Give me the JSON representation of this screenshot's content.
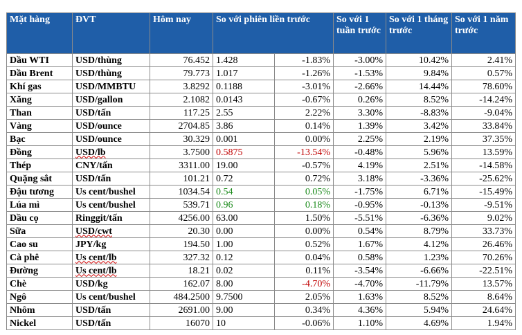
{
  "headers": {
    "commodity": "Mặt hàng",
    "unit": "ĐVT",
    "today": "Hôm nay",
    "vs_prev_session": "So với phiên liền trước",
    "vs_week": "So với 1 tuần trước",
    "vs_month": "So với 1 tháng trước",
    "vs_year": "So với 1 năm trước"
  },
  "rows": [
    {
      "name": "Dầu WTI",
      "unit": "USD/thùng",
      "today": "76.452",
      "chg": "1.428",
      "chg_pct": "-1.83%",
      "week": "-3.00%",
      "month": "10.42%",
      "year": "2.41%"
    },
    {
      "name": "Dầu Brent",
      "unit": "USD/thùng",
      "today": "79.773",
      "chg": "1.017",
      "chg_pct": "-1.26%",
      "week": "-1.53%",
      "month": "9.84%",
      "year": "0.57%"
    },
    {
      "name": "Khí gas",
      "unit": "USD/MMBTU",
      "today": "3.8292",
      "chg": "0.1188",
      "chg_pct": "-3.01%",
      "week": "-2.66%",
      "month": "14.44%",
      "year": "78.60%"
    },
    {
      "name": "Xăng",
      "unit": "USD/gallon",
      "today": "2.1082",
      "chg": "0.0143",
      "chg_pct": "-0.67%",
      "week": "0.26%",
      "month": "8.52%",
      "year": "-14.24%"
    },
    {
      "name": "Than",
      "unit": "USD/tấn",
      "today": "117.25",
      "chg": "2.55",
      "chg_pct": "2.22%",
      "week": "3.30%",
      "month": "-8.83%",
      "year": "-9.04%"
    },
    {
      "name": "Vàng",
      "unit": "USD/ounce",
      "today": "2704.85",
      "chg": "3.86",
      "chg_pct": "0.14%",
      "week": "1.39%",
      "month": "3.42%",
      "year": "33.84%"
    },
    {
      "name": "Bạc",
      "unit": "USD/ounce",
      "today": "30.329",
      "chg": "0.001",
      "chg_pct": "0.00%",
      "week": "2.25%",
      "month": "2.19%",
      "year": "37.35%"
    },
    {
      "name": "Đồng",
      "unit": "USD/lb",
      "today": "3.7500",
      "chg": "0.5875",
      "chg_pct": "-13.54%",
      "week": "-0.48%",
      "month": "5.96%",
      "year": "13.59%"
    },
    {
      "name": "Thép",
      "unit": "CNY/tấn",
      "today": "3311.00",
      "chg": "19.00",
      "chg_pct": "-0.57%",
      "week": "4.19%",
      "month": "2.51%",
      "year": "-14.58%"
    },
    {
      "name": "Quặng sắt",
      "unit": "USD/tấn",
      "today": "101.21",
      "chg": "0.72",
      "chg_pct": "0.72%",
      "week": "3.18%",
      "month": "-3.36%",
      "year": "-25.62%"
    },
    {
      "name": "Đậu tương",
      "unit": "Us cent/bushel",
      "today": "1034.54",
      "chg": "0.54",
      "chg_pct": "0.05%",
      "week": "-1.75%",
      "month": "6.71%",
      "year": "-15.49%"
    },
    {
      "name": "Lúa mì",
      "unit": "Us cent/bushel",
      "today": "539.71",
      "chg": "0.96",
      "chg_pct": "0.18%",
      "week": "-0.95%",
      "month": "-0.13%",
      "year": "-9.51%"
    },
    {
      "name": "Dầu cọ",
      "unit": "Ringgit/tấn",
      "today": "4256.00",
      "chg": "63.00",
      "chg_pct": "1.50%",
      "week": "-5.51%",
      "month": "-6.36%",
      "year": "9.02%"
    },
    {
      "name": "Sữa",
      "unit": "USD/cwt",
      "today": "20.30",
      "chg": "0.00",
      "chg_pct": "0.00%",
      "week": "0.54%",
      "month": "8.79%",
      "year": "33.73%"
    },
    {
      "name": "Cao su",
      "unit": "JPY/kg",
      "today": "194.50",
      "chg": "1.00",
      "chg_pct": "0.52%",
      "week": "1.67%",
      "month": "4.12%",
      "year": "26.46%"
    },
    {
      "name": "Cà phê",
      "unit": "Us cent/lb",
      "today": "327.32",
      "chg": "0.12",
      "chg_pct": "0.04%",
      "week": "0.58%",
      "month": "1.23%",
      "year": "70.26%"
    },
    {
      "name": "Đường",
      "unit": "Us cent/lb",
      "today": "18.21",
      "chg": "0.02",
      "chg_pct": "0.11%",
      "week": "-3.54%",
      "month": "-6.66%",
      "year": "-22.51%"
    },
    {
      "name": "Chè",
      "unit": "USD/kg",
      "today": "162.07",
      "chg": "8.00",
      "chg_pct": "-4.70%",
      "week": "-4.70%",
      "month": "-11.79%",
      "year": "13.57%"
    },
    {
      "name": "Ngô",
      "unit": "Us cent/bushel",
      "today": "484.2500",
      "chg": "9.7500",
      "chg_pct": "2.05%",
      "week": "1.63%",
      "month": "8.52%",
      "year": "8.64%"
    },
    {
      "name": "Nhôm",
      "unit": "USD/tấn",
      "today": "2691.00",
      "chg": "9.00",
      "chg_pct": "0.34%",
      "week": "4.36%",
      "month": "5.94%",
      "year": "24.64%"
    },
    {
      "name": "Nickel",
      "unit": "USD/tấn",
      "today": "16070",
      "chg": "10",
      "chg_pct": "-0.06%",
      "week": "1.10%",
      "month": "4.69%",
      "year": "1.94%"
    }
  ],
  "colors": {
    "header_bg": "#1f5ea8",
    "negative_highlight": "#c00000",
    "positive_highlight": "#1a8a1a"
  }
}
